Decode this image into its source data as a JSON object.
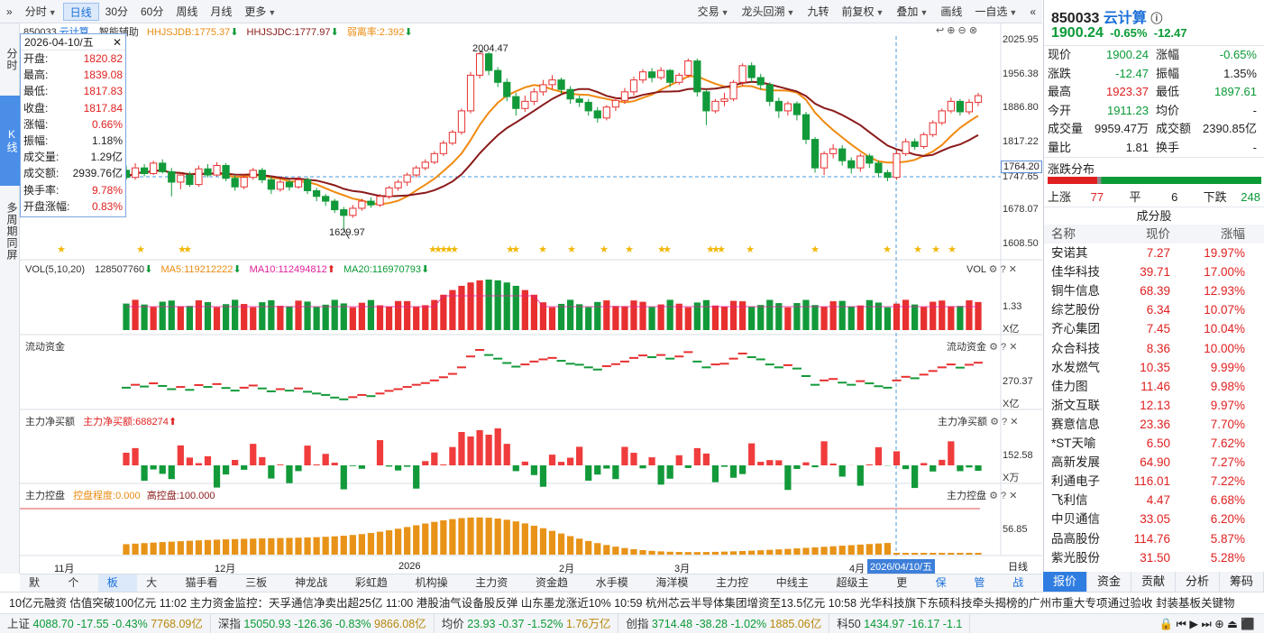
{
  "toolbar": {
    "left": [
      "分时",
      "日线",
      "30分",
      "60分",
      "周线",
      "月线",
      "更多"
    ],
    "right": [
      "交易",
      "龙头回溯",
      "九转",
      "前复权",
      "叠加",
      "画线",
      "一自选"
    ]
  },
  "leftstrip": [
    "分时",
    "K线",
    "多周期同屏"
  ],
  "main_legend": {
    "code": "850033",
    "name": "云计算",
    "assist": "智能辅助",
    "hhjsjdb": "HHJSJDB:1775.37",
    "hhjsjdc": "HHJSJDC:1777.97",
    "away": "弱离率:2.392"
  },
  "tooltip": {
    "date": "2026-04-10/五",
    "rows": [
      {
        "k": "开盘:",
        "v": "1820.82",
        "c": "red"
      },
      {
        "k": "最高:",
        "v": "1839.08",
        "c": "red"
      },
      {
        "k": "最低:",
        "v": "1817.83",
        "c": "red"
      },
      {
        "k": "收盘:",
        "v": "1817.84",
        "c": "red"
      },
      {
        "k": "涨幅:",
        "v": "0.66%",
        "c": "red"
      },
      {
        "k": "振幅:",
        "v": "1.18%",
        "c": "dark"
      },
      {
        "k": "成交量:",
        "v": "1.29亿",
        "c": "dark"
      },
      {
        "k": "成交额:",
        "v": "2939.76亿",
        "c": "dark"
      },
      {
        "k": "换手率:",
        "v": "9.78%",
        "c": "red"
      },
      {
        "k": "开盘涨幅:",
        "v": "0.83%",
        "c": "red"
      }
    ]
  },
  "price_axis": [
    "2025.95",
    "1956.38",
    "1886.80",
    "1817.22",
    "1747.65",
    "1678.07",
    "1608.50"
  ],
  "current_price_tag": "1764.20",
  "annotations": {
    "high": "2004.47",
    "low": "1629.97"
  },
  "vol_pane": {
    "title": "VOL(5,10,20)",
    "vol": "128507760",
    "ma5": "MA5:119212222",
    "ma10": "MA10:112494812",
    "ma20": "MA20:116970793",
    "axis": "1.33",
    "unit": "X亿",
    "right_label": "VOL"
  },
  "flow_pane": {
    "title": "流动资金",
    "axis": "270.37",
    "unit": "X亿",
    "right_label": "流动资金"
  },
  "net_pane": {
    "title": "主力净买额",
    "value": "主力净买额:688274",
    "axis": "152.58",
    "unit": "X万",
    "right_label": "主力净买额"
  },
  "ctrl_pane": {
    "title": "主力控盘",
    "degree": "控盘程度:0.000",
    "high": "高控盘:100.000",
    "axis": "56.85",
    "right_label": "主力控盘"
  },
  "xaxis": [
    "11月",
    "12月",
    "2026",
    "2月",
    "3月",
    "4月"
  ],
  "cursor_date": "2026/04/10/五",
  "period_label": "日线",
  "bottom_tabs": [
    "默认",
    "个股",
    "板块",
    "大盘",
    "猫手看盘",
    "三板斧",
    "神龙战法",
    "彩虹趋势",
    "机构操盘",
    "主力资金",
    "资金趋势",
    "水手模式",
    "海洋模式",
    "主力控盘",
    "中线主力",
    "超级主力",
    "更多"
  ],
  "bottom_right": [
    "保存",
    "管理",
    "战法"
  ],
  "ticker": "10亿元融资 估值突破100亿元      11:02 主力资金监控：天孚通信净卖出超25亿      11:00 港股油气设备股反弹 山东墨龙涨近10%      10:59 杭州芯云半导体集团增资至13.5亿元      10:58 光华科技旗下东硕科技牵头揭榜的广州市重大专项通过验收 封装基板关键物",
  "indices": [
    {
      "name": "上证",
      "val": "4088.70",
      "chg": "-17.55",
      "pct": "-0.43%",
      "amt": "7768.09亿"
    },
    {
      "name": "深指",
      "val": "15050.93",
      "chg": "-126.36",
      "pct": "-0.83%",
      "amt": "9866.08亿"
    },
    {
      "name": "均价",
      "val": "23.93",
      "chg": "-0.37",
      "pct": "-1.52%",
      "amt": "1.76万亿"
    },
    {
      "name": "创指",
      "val": "3714.48",
      "chg": "-38.28",
      "pct": "-1.02%",
      "amt": "1885.06亿"
    },
    {
      "name": "科50",
      "val": "1434.97",
      "chg": "-16.17",
      "pct": "-1.1"
    }
  ],
  "rp": {
    "code": "850033",
    "name": "云计算",
    "price": "1900.24",
    "pct": "-0.65%",
    "chg": "-12.47",
    "stats": [
      [
        {
          "k": "现价",
          "v": "1900.24",
          "c": "green"
        },
        {
          "k": "涨幅",
          "v": "-0.65%",
          "c": "green"
        }
      ],
      [
        {
          "k": "涨跌",
          "v": "-12.47",
          "c": "green"
        },
        {
          "k": "振幅",
          "v": "1.35%",
          "c": "dark"
        }
      ],
      [
        {
          "k": "最高",
          "v": "1923.37",
          "c": "red"
        },
        {
          "k": "最低",
          "v": "1897.61",
          "c": "green"
        }
      ],
      [
        {
          "k": "今开",
          "v": "1911.23",
          "c": "green"
        },
        {
          "k": "均价",
          "v": "-",
          "c": "dark"
        }
      ],
      [
        {
          "k": "成交量",
          "v": "9959.47万",
          "c": "dark"
        },
        {
          "k": "成交额",
          "v": "2390.85亿",
          "c": "dark"
        }
      ],
      [
        {
          "k": "量比",
          "v": "1.81",
          "c": "dark"
        },
        {
          "k": "换手",
          "v": "-",
          "c": "dark"
        }
      ]
    ],
    "dist_title": "涨跌分布",
    "up_label": "上涨",
    "up": "77",
    "flat_label": "平",
    "flat": "6",
    "down_label": "下跌",
    "down": "248",
    "cons_title": "成分股",
    "cons_head": [
      "名称",
      "现价",
      "涨幅"
    ],
    "cons": [
      [
        "安诺其",
        "7.27",
        "19.97%"
      ],
      [
        "佳华科技",
        "39.71",
        "17.00%"
      ],
      [
        "铜牛信息",
        "68.39",
        "12.93%"
      ],
      [
        "综艺股份",
        "6.34",
        "10.07%"
      ],
      [
        "齐心集团",
        "7.45",
        "10.04%"
      ],
      [
        "众合科技",
        "8.36",
        "10.00%"
      ],
      [
        "水发燃气",
        "10.35",
        "9.99%"
      ],
      [
        "佳力图",
        "11.46",
        "9.98%"
      ],
      [
        "浙文互联",
        "12.13",
        "9.97%"
      ],
      [
        "赛意信息",
        "23.36",
        "7.70%"
      ],
      [
        "*ST天喻",
        "6.50",
        "7.62%"
      ],
      [
        "高新发展",
        "64.90",
        "7.27%"
      ],
      [
        "利通电子",
        "116.01",
        "7.22%"
      ],
      [
        "飞利信",
        "4.47",
        "6.68%"
      ],
      [
        "中贝通信",
        "33.05",
        "6.20%"
      ],
      [
        "品高股份",
        "114.76",
        "5.87%"
      ],
      [
        "紫光股份",
        "31.50",
        "5.28%"
      ]
    ],
    "tabs": [
      "报价",
      "资金",
      "贡献",
      "分析",
      "筹码"
    ]
  },
  "chart_data": {
    "type": "candlestick",
    "ylim": [
      1608.5,
      2025.95
    ],
    "candles": [
      [
        1755,
        1740,
        1765,
        1735
      ],
      [
        1740,
        1760,
        1770,
        1735
      ],
      [
        1760,
        1748,
        1768,
        1742
      ],
      [
        1748,
        1770,
        1775,
        1745
      ],
      [
        1770,
        1752,
        1778,
        1748
      ],
      [
        1752,
        1730,
        1760,
        1700
      ],
      [
        1730,
        1745,
        1750,
        1715
      ],
      [
        1745,
        1725,
        1752,
        1720
      ],
      [
        1725,
        1758,
        1765,
        1720
      ],
      [
        1758,
        1745,
        1768,
        1740
      ],
      [
        1745,
        1765,
        1772,
        1742
      ],
      [
        1765,
        1738,
        1770,
        1732
      ],
      [
        1738,
        1720,
        1745,
        1712
      ],
      [
        1720,
        1740,
        1748,
        1715
      ],
      [
        1740,
        1755,
        1760,
        1735
      ],
      [
        1755,
        1735,
        1760,
        1728
      ],
      [
        1735,
        1715,
        1742,
        1705
      ],
      [
        1715,
        1730,
        1738,
        1710
      ],
      [
        1730,
        1720,
        1735,
        1712
      ],
      [
        1720,
        1735,
        1742,
        1716
      ],
      [
        1735,
        1712,
        1740,
        1705
      ],
      [
        1712,
        1700,
        1718,
        1690
      ],
      [
        1700,
        1690,
        1705,
        1680
      ],
      [
        1690,
        1672,
        1695,
        1665
      ],
      [
        1672,
        1660,
        1678,
        1630
      ],
      [
        1660,
        1675,
        1682,
        1655
      ],
      [
        1675,
        1690,
        1695,
        1670
      ],
      [
        1690,
        1682,
        1698,
        1676
      ],
      [
        1682,
        1700,
        1705,
        1678
      ],
      [
        1700,
        1718,
        1722,
        1695
      ],
      [
        1718,
        1730,
        1735,
        1712
      ],
      [
        1730,
        1745,
        1750,
        1722
      ],
      [
        1745,
        1760,
        1765,
        1740
      ],
      [
        1760,
        1772,
        1778,
        1755
      ],
      [
        1772,
        1790,
        1795,
        1768
      ],
      [
        1790,
        1812,
        1818,
        1785
      ],
      [
        1812,
        1835,
        1840,
        1808
      ],
      [
        1835,
        1880,
        1885,
        1830
      ],
      [
        1880,
        1955,
        1962,
        1875
      ],
      [
        1955,
        2000,
        2004,
        1948
      ],
      [
        2000,
        1965,
        2004,
        1955
      ],
      [
        1965,
        1940,
        1972,
        1930
      ],
      [
        1940,
        1910,
        1948,
        1900
      ],
      [
        1910,
        1885,
        1918,
        1870
      ],
      [
        1885,
        1900,
        1912,
        1878
      ],
      [
        1900,
        1920,
        1928,
        1892
      ],
      [
        1920,
        1935,
        1945,
        1912
      ],
      [
        1935,
        1945,
        1955,
        1925
      ],
      [
        1945,
        1925,
        1950,
        1915
      ],
      [
        1925,
        1905,
        1932,
        1895
      ],
      [
        1905,
        1898,
        1912,
        1888
      ],
      [
        1898,
        1880,
        1905,
        1870
      ],
      [
        1880,
        1865,
        1888,
        1855
      ],
      [
        1865,
        1888,
        1892,
        1860
      ],
      [
        1888,
        1902,
        1908,
        1880
      ],
      [
        1902,
        1920,
        1928,
        1895
      ],
      [
        1920,
        1945,
        1952,
        1912
      ],
      [
        1945,
        1962,
        1968,
        1938
      ],
      [
        1962,
        1950,
        1970,
        1940
      ],
      [
        1950,
        1965,
        1972,
        1945
      ],
      [
        1965,
        1940,
        1968,
        1930
      ],
      [
        1940,
        1955,
        1960,
        1935
      ],
      [
        1955,
        1985,
        1990,
        1950
      ],
      [
        1985,
        1920,
        1990,
        1910
      ],
      [
        1920,
        1880,
        1925,
        1850
      ],
      [
        1880,
        1900,
        1905,
        1875
      ],
      [
        1900,
        1905,
        1918,
        1890
      ],
      [
        1905,
        1940,
        1945,
        1900
      ],
      [
        1940,
        1975,
        1980,
        1932
      ],
      [
        1975,
        1950,
        1982,
        1940
      ],
      [
        1950,
        1935,
        1958,
        1925
      ],
      [
        1935,
        1900,
        1940,
        1890
      ],
      [
        1900,
        1880,
        1908,
        1865
      ],
      [
        1880,
        1895,
        1900,
        1870
      ],
      [
        1895,
        1872,
        1900,
        1860
      ],
      [
        1872,
        1820,
        1878,
        1810
      ],
      [
        1820,
        1760,
        1825,
        1750
      ],
      [
        1760,
        1790,
        1795,
        1745
      ],
      [
        1790,
        1800,
        1810,
        1780
      ],
      [
        1800,
        1775,
        1808,
        1765
      ],
      [
        1775,
        1760,
        1782,
        1748
      ],
      [
        1760,
        1785,
        1790,
        1752
      ],
      [
        1785,
        1770,
        1790,
        1760
      ],
      [
        1770,
        1750,
        1775,
        1740
      ],
      [
        1750,
        1740,
        1756,
        1732
      ],
      [
        1740,
        1790,
        1798,
        1735
      ],
      [
        1790,
        1815,
        1822,
        1785
      ],
      [
        1815,
        1805,
        1822,
        1798
      ],
      [
        1805,
        1830,
        1835,
        1800
      ],
      [
        1830,
        1855,
        1860,
        1825
      ],
      [
        1855,
        1880,
        1885,
        1850
      ],
      [
        1880,
        1900,
        1908,
        1875
      ],
      [
        1900,
        1878,
        1905,
        1870
      ],
      [
        1878,
        1898,
        1905,
        1872
      ],
      [
        1898,
        1912,
        1918,
        1890
      ]
    ]
  }
}
